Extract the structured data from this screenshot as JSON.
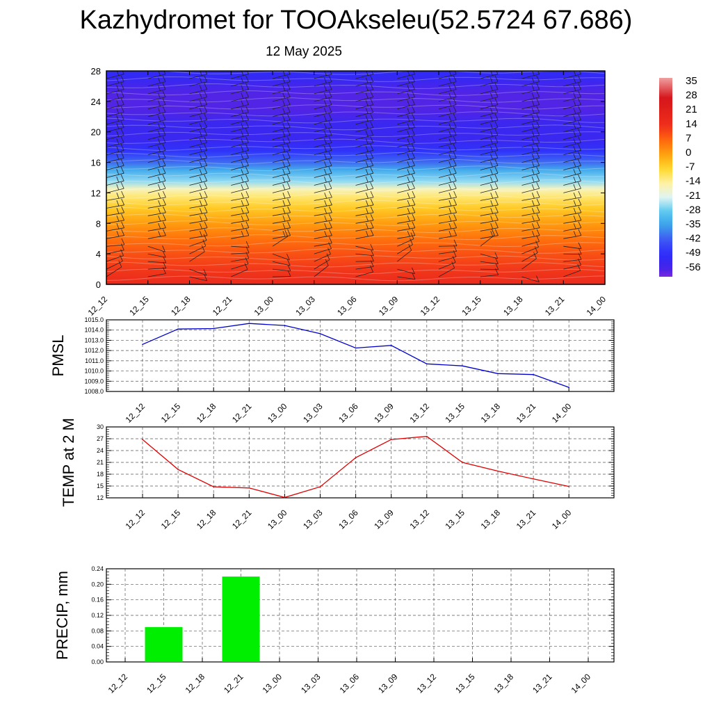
{
  "title": "Kazhydromet for TOOAkseleu(52.5724 67.686)",
  "subtitle": "12 May 2025",
  "chart_data": [
    {
      "type": "heatmap",
      "x_categories": [
        "12_12",
        "12_15",
        "12_18",
        "12_21",
        "13_00",
        "13_03",
        "13_06",
        "13_09",
        "13_12",
        "13_15",
        "13_18",
        "13_21",
        "14_00"
      ],
      "y_ticks": [
        0,
        4,
        8,
        12,
        16,
        20,
        24,
        28
      ],
      "ylim": [
        0,
        28
      ],
      "colorbar_labels": [
        "35",
        "28",
        "21",
        "14",
        "7",
        "0",
        "-7",
        "-14",
        "-21",
        "-28",
        "-35",
        "-42",
        "-49",
        "-56"
      ],
      "colorbar_range": [
        -60,
        38
      ],
      "colors": {
        "stops": [
          "#7a2bdd",
          "#4422e8",
          "#2c2dfb",
          "#3f56f4",
          "#3aa0ea",
          "#58c8f0",
          "#dff4f4",
          "#fff2a6",
          "#ffd92e",
          "#ffa40f",
          "#ff6a0c",
          "#f0301c",
          "#d5141a",
          "#f0a0a0"
        ],
        "stop_values": [
          -60,
          -56,
          -49,
          -42,
          -35,
          -28,
          -21,
          -14,
          -7,
          0,
          7,
          14,
          28,
          38
        ]
      },
      "temperature_profile": [
        {
          "level": 0,
          "value": 17
        },
        {
          "level": 2,
          "value": 13
        },
        {
          "level": 4,
          "value": 10
        },
        {
          "level": 6,
          "value": 6
        },
        {
          "level": 8,
          "value": 1
        },
        {
          "level": 10,
          "value": -5
        },
        {
          "level": 11.5,
          "value": -11
        },
        {
          "level": 12.5,
          "value": -16
        },
        {
          "level": 13.5,
          "value": -25
        },
        {
          "level": 15,
          "value": -33
        },
        {
          "level": 16,
          "value": -40
        },
        {
          "level": 17.5,
          "value": -48
        },
        {
          "level": 19,
          "value": -53
        },
        {
          "level": 21,
          "value": -53
        },
        {
          "level": 23,
          "value": -57
        },
        {
          "level": 25,
          "value": -57
        },
        {
          "level": 27,
          "value": -52
        },
        {
          "level": 28,
          "value": -50
        }
      ]
    },
    {
      "type": "line",
      "ylabel": "PMSL",
      "x": [
        "12_12",
        "12_15",
        "12_18",
        "12_21",
        "13_00",
        "13_03",
        "13_06",
        "13_09",
        "13_12",
        "13_15",
        "13_18",
        "13_21",
        "14_00"
      ],
      "values": [
        1012.6,
        1014.1,
        1014.15,
        1014.65,
        1014.45,
        1013.65,
        1012.25,
        1012.5,
        1010.7,
        1010.5,
        1009.75,
        1009.65,
        1008.4
      ],
      "y_ticks": [
        "1008.0",
        "1009.0",
        "1010.0",
        "1011.0",
        "1012.0",
        "1013.0",
        "1014.0",
        "1015.0"
      ],
      "ylim": [
        1008,
        1015
      ],
      "color": "#0000cc"
    },
    {
      "type": "line",
      "ylabel": "TEMP at 2 M",
      "x": [
        "12_12",
        "12_15",
        "12_18",
        "12_21",
        "13_00",
        "13_03",
        "13_06",
        "13_09",
        "13_12",
        "13_15",
        "13_18",
        "13_21",
        "14_00"
      ],
      "values": [
        26.8,
        19.2,
        14.8,
        14.5,
        12.1,
        14.8,
        22.2,
        26.8,
        27.6,
        21.0,
        18.8,
        16.8,
        14.9
      ],
      "y_ticks": [
        "12",
        "15",
        "18",
        "21",
        "24",
        "27",
        "30"
      ],
      "ylim": [
        12,
        30
      ],
      "color": "#dd0000"
    },
    {
      "type": "bar",
      "ylabel": "PRECIP, mm",
      "categories": [
        "12_12",
        "12_15",
        "12_18",
        "12_21",
        "13_00",
        "13_03",
        "13_06",
        "13_09",
        "13_12",
        "13_15",
        "13_18",
        "13_21",
        "14_00"
      ],
      "values": [
        0,
        0.09,
        0,
        0.22,
        0,
        0,
        0,
        0,
        0,
        0,
        0,
        0,
        0
      ],
      "y_ticks": [
        "0.00",
        "0.04",
        "0.08",
        "0.12",
        "0.16",
        "0.20",
        "0.24"
      ],
      "ylim": [
        0,
        0.24
      ],
      "color": "#00ee00"
    }
  ]
}
